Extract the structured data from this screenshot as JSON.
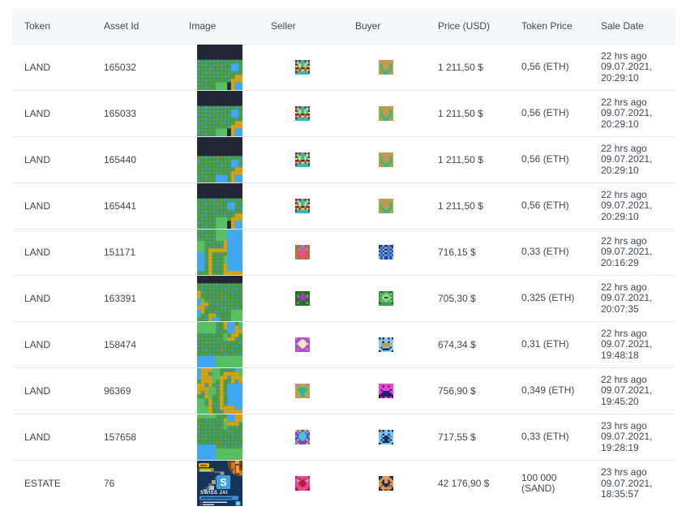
{
  "colors": {
    "page_bg": "#ffffff",
    "header_bg": "#f6f7f9",
    "text": "#3e4754",
    "row_border": "#e8e9eb"
  },
  "map_palette": {
    "grid_line": "#3f8e40",
    "d": "#212735",
    "g": "#4e9e4f",
    "G": "#58bf64",
    "B": "#41a9f1",
    "b": "#3798ec",
    "o": "#e2691f",
    "y": "#d4a617",
    "y_line": "#c3981a"
  },
  "estate_image": {
    "bg": "#15345a",
    "badge1": "#e8a622",
    "badge1_text": "#7a4a10",
    "badge2": "#8f941f",
    "badge2_text": "#d8e0a0",
    "planet": "#7c4418",
    "planet_spot1": "#c87a28",
    "planet_spot2": "#e8a042",
    "structure1": "#9aa0ac",
    "structure2": "#5a6066",
    "structure3": "#c0c6cc",
    "logo_bg": "#3aa3dc",
    "logo_letter": "S",
    "title": "SWISS JAI",
    "title_color": "#f2f4f8",
    "banner_bg": "#4090d4",
    "banner_text_color": "#15456e",
    "bullet": "#e86028",
    "bullet_text": "#dce4ee",
    "corner_square": "#4ab0e8"
  },
  "table": {
    "columns": [
      {
        "key": "token",
        "label": "Token"
      },
      {
        "key": "asset_id",
        "label": "Asset Id"
      },
      {
        "key": "image",
        "label": "Image"
      },
      {
        "key": "seller",
        "label": "Seller"
      },
      {
        "key": "buyer",
        "label": "Buyer"
      },
      {
        "key": "price_usd",
        "label": "Price (USD)"
      },
      {
        "key": "token_price",
        "label": "Token Price"
      },
      {
        "key": "sale_date",
        "label": "Sale Date"
      }
    ],
    "rows": [
      {
        "token": "LAND",
        "asset_id": "165032",
        "image": {
          "kind": "land-map",
          "grid": [
            "dddddddddddd",
            "dddddddddddd",
            "dddddddddddd",
            "dddddddddddd",
            "bgbggbgbggbg",
            "ggbgbobggBBg",
            "bggbggggbBBg",
            "ggbggbggggbg",
            "bgggbggbggyy",
            "ggbgggggbyyy",
            "bggggGGGdyBB",
            "ggbggGGGdyBB"
          ]
        },
        "seller": {
          "bg": "#3eb4bc",
          "c1": "#b01212",
          "c2": "#f0ee3e",
          "grid": [
            "1.1..1.1",
            ".2....2.",
            "1.2..2.1",
            "2.2..2.2",
            "11.11.11",
            ".212212.",
            "1......1",
            "........"
          ]
        },
        "buyer": {
          "bg": "#b2a43e",
          "c1": "#3bb28e",
          "c2": "#f07a85",
          "grid": [
            ".2....2.",
            "...22...",
            ".1....1.",
            ".1.22.1.",
            ".1....1.",
            ".11..11.",
            "..1111..",
            "...11..."
          ]
        },
        "price_usd": "1 211,50 $",
        "token_price": [
          "0,56 (ETH)"
        ],
        "sale_date": [
          "22 hrs ago",
          "09.07.2021,",
          "20:29:10"
        ]
      },
      {
        "token": "LAND",
        "asset_id": "165033",
        "image": {
          "kind": "land-map",
          "grid": [
            "dddddddddddd",
            "dddddddddddd",
            "dddddddddddd",
            "dddddddddddd",
            "bgbggbgbggbg",
            "ggbgbobggBBg",
            "bggbggggbBBg",
            "ggbggbggggbg",
            "bgggbggbggyy",
            "ggbgggggbyyy",
            "bggggGGGdyBB",
            "ggbggGGGdyBB"
          ]
        },
        "seller": {
          "bg": "#3eb4bc",
          "c1": "#b01212",
          "c2": "#f0ee3e",
          "grid": [
            "1.1..1.1",
            ".2....2.",
            "1.2..2.1",
            "2.2..2.2",
            "11.11.11",
            ".212212.",
            "1......1",
            "........"
          ]
        },
        "buyer": {
          "bg": "#b2a43e",
          "c1": "#3bb28e",
          "c2": "#f07a85",
          "grid": [
            ".2....2.",
            "...22...",
            ".1....1.",
            ".1.22.1.",
            ".1....1.",
            ".11..11.",
            "..1111..",
            "...11..."
          ]
        },
        "price_usd": "1 211,50 $",
        "token_price": [
          "0,56 (ETH)"
        ],
        "sale_date": [
          "22 hrs ago",
          "09.07.2021,",
          "20:29:10"
        ]
      },
      {
        "token": "LAND",
        "asset_id": "165440",
        "image": {
          "kind": "land-map",
          "grid": [
            "dddddddddddd",
            "dddddddddddd",
            "dddddddddddd",
            "dddddddddddd",
            "dddddddddddd",
            "ggbgboggbggb",
            "bggggbgggBBg",
            "ggbgggbggBBb",
            "gggbggggbgyy",
            "gbgggbgggyyy",
            "ggbggBBBgyBB",
            "bggggBBBgyBB"
          ]
        },
        "seller": {
          "bg": "#3eb4bc",
          "c1": "#b01212",
          "c2": "#f0ee3e",
          "grid": [
            "1.1..1.1",
            ".2....2.",
            "1.2..2.1",
            "2.2..2.2",
            "11.11.11",
            ".212212.",
            "1......1",
            "........"
          ]
        },
        "buyer": {
          "bg": "#b2a43e",
          "c1": "#3bb28e",
          "c2": "#f07a85",
          "grid": [
            ".2....2.",
            "...22...",
            ".1....1.",
            ".1.22.1.",
            ".1....1.",
            ".11..11.",
            "..1111..",
            "...11..."
          ]
        },
        "price_usd": "1 211,50 $",
        "token_price": [
          "0,56 (ETH)"
        ],
        "sale_date": [
          "22 hrs ago",
          "09.07.2021,",
          "20:29:10"
        ]
      },
      {
        "token": "LAND",
        "asset_id": "165441",
        "image": {
          "kind": "land-map",
          "grid": [
            "dddddddddddd",
            "dddddddddddd",
            "dddddddddddd",
            "dddddddddddd",
            "gbggbggbggbg",
            "ggbgboggBBgg",
            "bgggggbgBBgb",
            "ggbgbggggbgg",
            "gbgggbgbggyy",
            "ggbggGGGgyyy",
            "bgggbGGGdyBB",
            "ggbggGGGdyBB"
          ]
        },
        "seller": {
          "bg": "#3eb4bc",
          "c1": "#b01212",
          "c2": "#f0ee3e",
          "grid": [
            "1.1..1.1",
            ".2....2.",
            "1.2..2.1",
            "2.2..2.2",
            "11.11.11",
            ".212212.",
            "1......1",
            "........"
          ]
        },
        "buyer": {
          "bg": "#b2a43e",
          "c1": "#3bb28e",
          "c2": "#f07a85",
          "grid": [
            ".2....2.",
            "...22...",
            ".1....1.",
            ".1.22.1.",
            ".1....1.",
            ".11..11.",
            "..1111..",
            "...11..."
          ]
        },
        "price_usd": "1 211,50 $",
        "token_price": [
          "0,56 (ETH)"
        ],
        "sale_date": [
          "22 hrs ago",
          "09.07.2021,",
          "20:29:10"
        ]
      },
      {
        "token": "LAND",
        "asset_id": "151171",
        "image": {
          "kind": "land-map",
          "grid": [
            "gbgggGGGBBBB",
            "ggbggGGGBBBB",
            "bgggbGGGBBBB",
            "GGgbgggyBBBB",
            "GGggbgbyBBBB",
            "GGgyyyyyBBBB",
            "BBgygbogBBBB",
            "BBgygggGBBBB",
            "BBbygbgGBBBB",
            "BBgygggyBBBB",
            "BBgygbgyBBBB",
            "gggygggyyyyy"
          ]
        },
        "seller": {
          "bg": "#a8761b",
          "c1": "#f4498c",
          "c2": "#4aa8f0",
          "grid": [
            ".1.22.1.",
            "..1111..",
            ".221122.",
            "1..11..1",
            "1.1111.1",
            "..1111..",
            ".1.11.1.",
            "2..11..2"
          ]
        },
        "buyer": {
          "bg": "#3a2ab2",
          "c1": "#54c2d8",
          "c2": "#68de3c",
          "grid": [
            "..1..1..",
            ".2.11.2.",
            "1.1..1.1",
            ".1.22.1.",
            "1.1..1.1",
            ".1.11.1.",
            "1.1..1.1",
            "2.1..1.2"
          ]
        },
        "price_usd": "716,15 $",
        "token_price": [
          "0,33 (ETH)"
        ],
        "sale_date": [
          "22 hrs ago",
          "09.07.2021,",
          "20:16:29"
        ]
      },
      {
        "token": "LAND",
        "asset_id": "163391",
        "image": {
          "kind": "land-map",
          "grid": [
            "dddddddddddd",
            "dddddddddddd",
            "ggbggbggbggg",
            "gbgggggbggbg",
            "ybggbggggbgg",
            "ygggggoggggb",
            "BGgbgggbgggg",
            "Byyggbgggggg",
            "yybggggbggbg",
            "BygggbgggGGG",
            "BggyybgggGGG",
            "ggbyBBgggGGG"
          ]
        },
        "seller": {
          "bg": "#2e6b2a",
          "c1": "#a03cc8",
          "c2": "#5ab848",
          "grid": [
            "........",
            "...11...",
            ".2.11.2.",
            ".111111.",
            "...11...",
            "..1..1..",
            ".2....2.",
            "........"
          ]
        },
        "buyer": {
          "bg": "#3f9e4a",
          "c1": "#8fd88a",
          "c2": "#1c5924",
          "grid": [
            ".2....2.",
            ".1.11.1.",
            "..1111..",
            ".112211.",
            "..1111..",
            ".1.11.1.",
            "2......2",
            "........"
          ]
        },
        "price_usd": "705,30 $",
        "token_price": [
          "0,325 (ETH)"
        ],
        "sale_date": [
          "22 hrs ago",
          "09.07.2021,",
          "20:07:35"
        ]
      },
      {
        "token": "LAND",
        "asset_id": "158474",
        "image": {
          "kind": "land-map",
          "grid": [
            "GGGGGggyBBgG",
            "GGGGGbgyBByG",
            "GGGGGgggBByy",
            "ggbgbggGgyyg",
            "bgggbggGyybg",
            "ggbgggbgbggb",
            "bgggbgggggbg",
            "ggbggboggbgg",
            "gggbgggbgggb",
            "BBBBBGGGGGGG",
            "BBBBBGGGGGGG",
            "BBBBBGGGGGGG"
          ]
        },
        "seller": {
          "bg": "#ab54cf",
          "c1": "#f2e9c0",
          "c2": "#e86fb0",
          "grid": [
            "2......2",
            "...11...",
            "..1111..",
            ".111111.",
            "..1111..",
            "...11...",
            ".2....2.",
            "........"
          ]
        },
        "buyer": {
          "bg": "#8ecaf0",
          "c1": "#1c2a52",
          "c2": "#b2a43e",
          "grid": [
            "1.1..1.1",
            "........",
            "..1..1..",
            ".222222.",
            "..2222..",
            ".1....1.",
            "..1111..",
            "1......1"
          ]
        },
        "price_usd": "674,34 $",
        "token_price": [
          "0,31 (ETH)"
        ],
        "sale_date": [
          "22 hrs ago",
          "09.07.2021,",
          "19:48:18"
        ]
      },
      {
        "token": "LAND",
        "asset_id": "96369",
        "image": {
          "kind": "land-map",
          "grid": [
            "ByyyGGggbgBG",
            "ByybGGgyyyyG",
            "ByyyGGyybyyy",
            "gyyyGgyggyby",
            "yybygbygBBBB",
            "yyyGGgygBBBB",
            "ybyGGgybBBBB",
            "ggyGggygBBBB",
            "GGbyggygBBBB",
            "GGgybgybBBBB",
            "GGGygbyyyyBB",
            "GGGyggbyyyyy"
          ]
        },
        "seller": {
          "bg": "#a9b23a",
          "c1": "#d968d9",
          "c2": "#35b29b",
          "grid": [
            ".1....1.",
            "1.1..1.1",
            "..2222..",
            ".222222.",
            "..2222..",
            "1..22..1",
            "...22...",
            ".1....1."
          ]
        },
        "buyer": {
          "bg": "#e845d8",
          "c1": "#2a1a6e",
          "c2": "#140f3c",
          "grid": [
            "........",
            "..2..2..",
            "........",
            ".1....1.",
            "..1111..",
            ".111111.",
            "11111111",
            "1.1..1.1"
          ]
        },
        "price_usd": "756,90 $",
        "token_price": [
          "0,349 (ETH)"
        ],
        "sale_date": [
          "22 hrs ago",
          "09.07.2021,",
          "19:45:20"
        ]
      },
      {
        "token": "LAND",
        "asset_id": "157658",
        "image": {
          "kind": "land-map",
          "grid": [
            "GGGGGgggBByy",
            "ggbggbgyBByy",
            "gggbgggGyyyb",
            "bgggbgbGggbg",
            "ggbgggggbggg",
            "bgggbgbggbgb",
            "ggbggggbgggg",
            "gggbgoggbgbg",
            "BBBBBggbgggb",
            "BBBBBGGGGGGG",
            "BBBBBGGGGGGG",
            "BBBBBGGGGGGG"
          ]
        },
        "seller": {
          "bg": "#7a48c8",
          "c1": "#48c4d8",
          "c2": "#e8d23c",
          "grid": [
            "2.2..2.2",
            ".1.11.1.",
            "..1111..",
            "1.1111.1",
            "..1111..",
            ".2.11.2.",
            "1......1",
            ".2....2."
          ]
        },
        "buyer": {
          "bg": "#79c4ee",
          "c1": "#1c2a52",
          "c2": "#3a97d8",
          "grid": [
            "1.1..1.1",
            "........",
            "..1..1..",
            ".2.11.2.",
            "..1111..",
            ".1.11.1.",
            "..1111..",
            "1......1"
          ]
        },
        "price_usd": "717,55 $",
        "token_price": [
          "0,33 (ETH)"
        ],
        "sale_date": [
          "23 hrs ago",
          "09.07.2021,",
          "19:28:19"
        ]
      },
      {
        "token": "ESTATE",
        "asset_id": "76",
        "image": {
          "kind": "estate"
        },
        "seller": {
          "bg": "#e84898",
          "c1": "#b02040",
          "c2": "#8ed0f0",
          "grid": [
            "1......1",
            "..1..1..",
            ".2.11.2.",
            "..1111..",
            "..1111..",
            "...11...",
            "1......1",
            "11....11"
          ]
        },
        "buyer": {
          "bg": "#e09a52",
          "c1": "#1c2a52",
          "c2": "#8a4f20",
          "grid": [
            "11....11",
            "1......1",
            "..1..1..",
            ".21..12.",
            "..1111..",
            ".2.11.2.",
            "1......1",
            "11.22.11"
          ]
        },
        "price_usd": "42 176,90 $",
        "token_price": [
          "100 000",
          "(SAND)"
        ],
        "sale_date": [
          "23 hrs ago",
          "09.07.2021,",
          "18:35:57"
        ]
      }
    ]
  }
}
